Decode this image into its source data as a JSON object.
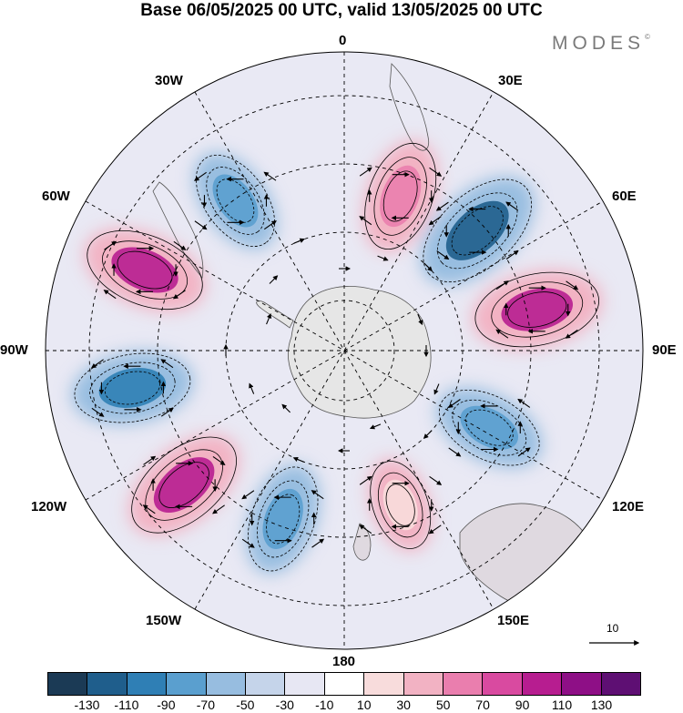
{
  "title": "Base 06/05/2025 00 UTC, valid 13/05/2025 00 UTC",
  "brand": "MODES",
  "brand_mark": "©",
  "longitude_labels": {
    "top": "0",
    "lon_30e": "30E",
    "lon_60e": "60E",
    "lon_90e": "90E",
    "lon_120e": "120E",
    "lon_150e": "150E",
    "bottom": "180",
    "lon_150w": "150W",
    "lon_120w": "120W",
    "lon_90w": "90W",
    "lon_60w": "60W",
    "lon_30w": "30W"
  },
  "reference_vector": "10",
  "colorbar": {
    "colors": [
      "#1b3a55",
      "#1f5e8c",
      "#2f7fb5",
      "#5a9fcf",
      "#97bde0",
      "#c5d4ea",
      "#e7e7f3",
      "#ffffff",
      "#f8dcdc",
      "#f2b2c3",
      "#ea7eae",
      "#d94aa0",
      "#b71d90",
      "#8e0f86",
      "#5e0f73"
    ],
    "labels": [
      "-130",
      "-110",
      "-90",
      "-70",
      "-50",
      "-30",
      "-10",
      "10",
      "30",
      "50",
      "70",
      "90",
      "110",
      "130"
    ]
  },
  "anomaly_centers": [
    {
      "lon": 20,
      "lat_ring": 0.55,
      "value": 75,
      "color": "#ea7eae"
    },
    {
      "lon": 48,
      "lat_ring": 0.6,
      "value": -120,
      "color": "#1f5e8c"
    },
    {
      "lon": 78,
      "lat_ring": 0.66,
      "value": 110,
      "color": "#b71d90"
    },
    {
      "lon": 118,
      "lat_ring": 0.55,
      "value": -70,
      "color": "#5a9fcf"
    },
    {
      "lon": 160,
      "lat_ring": 0.55,
      "value": 30,
      "color": "#f8dcdc"
    },
    {
      "lon": -160,
      "lat_ring": 0.6,
      "value": -70,
      "color": "#5a9fcf"
    },
    {
      "lon": -130,
      "lat_ring": 0.7,
      "value": 105,
      "color": "#b71d90"
    },
    {
      "lon": -100,
      "lat_ring": 0.72,
      "value": -90,
      "color": "#2f7fb5"
    },
    {
      "lon": -68,
      "lat_ring": 0.72,
      "value": 100,
      "color": "#b71d90"
    },
    {
      "lon": -36,
      "lat_ring": 0.62,
      "value": -60,
      "color": "#5a9fcf"
    }
  ]
}
